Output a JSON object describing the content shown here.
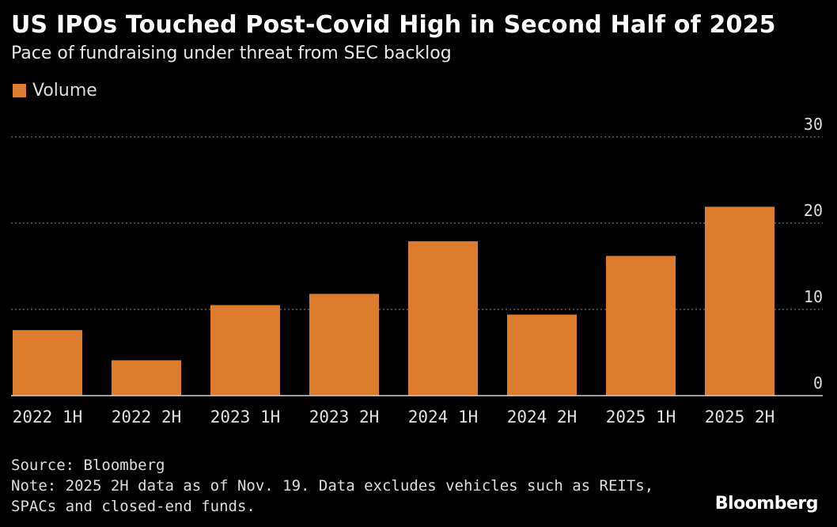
{
  "title": "US IPOs Touched Post-Covid High in Second Half of 2025",
  "subtitle": "Pace of fundraising under threat from SEC backlog",
  "footer": {
    "source": "Source: Bloomberg",
    "note_line1": "Note: 2025 2H data as of Nov. 19. Data excludes vehicles such as REITs,",
    "note_line2": "SPACs and closed-end funds."
  },
  "brand": "Bloomberg",
  "colors": {
    "bar": "#dd7c2d",
    "background": "#000000",
    "grid": "#8a8a8a"
  },
  "chart_data": {
    "type": "bar",
    "categories": [
      "2022 1H",
      "2022 2H",
      "2023 1H",
      "2023 2H",
      "2024 1H",
      "2024 2H",
      "2025 1H",
      "2025 2H"
    ],
    "series": [
      {
        "name": "Volume",
        "values": [
          7.6,
          4.1,
          10.5,
          11.8,
          17.9,
          9.4,
          16.2,
          21.9
        ]
      }
    ],
    "yticks": [
      0,
      10,
      20,
      30
    ],
    "ylim": [
      0,
      30
    ],
    "grid": true,
    "y_axis_side": "right",
    "legend": "top-left"
  }
}
